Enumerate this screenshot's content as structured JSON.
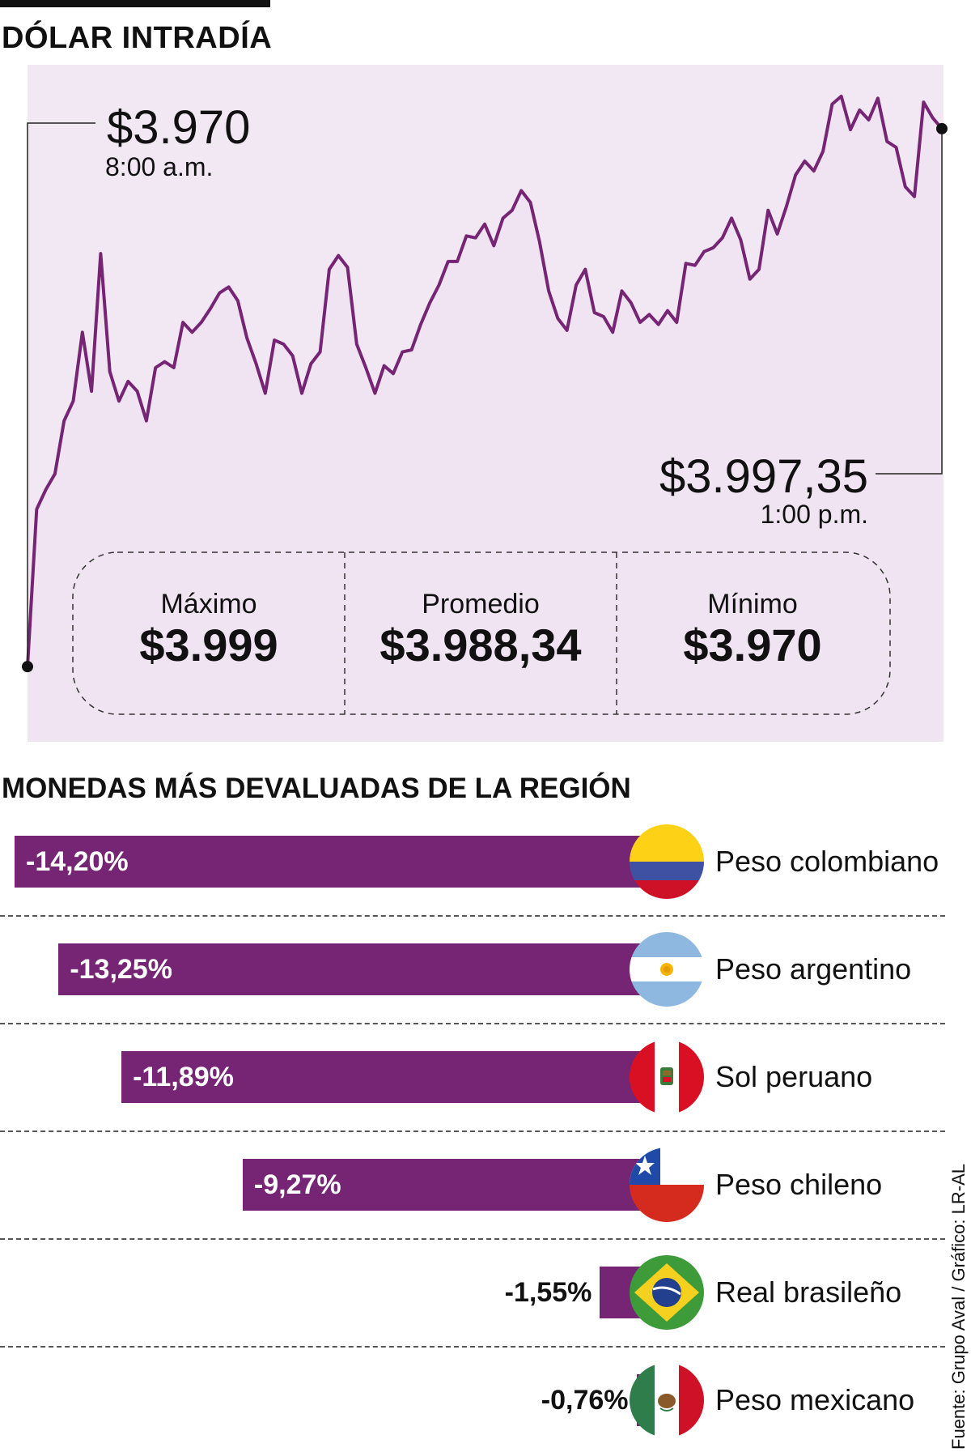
{
  "header": {
    "title": "DÓLAR INTRADÍA"
  },
  "chart_data": [
    {
      "type": "line",
      "title": "DÓLAR INTRADÍA",
      "series": [
        {
          "name": "Dólar intradía (COP)",
          "x": [
            0,
            1,
            2,
            3,
            4,
            5,
            6,
            7,
            8,
            9,
            10,
            11,
            12,
            13,
            14,
            15,
            16,
            17,
            18,
            19,
            20,
            21,
            22,
            23,
            24,
            25,
            26,
            27,
            28,
            29,
            30,
            31,
            32,
            33,
            34,
            35,
            36,
            37,
            38,
            39,
            40,
            41,
            42,
            43,
            44,
            45,
            46,
            47,
            48,
            49,
            50,
            51,
            52,
            53,
            54,
            55,
            56,
            57,
            58,
            59,
            60,
            61,
            62,
            63,
            64,
            65,
            66,
            67,
            68,
            69,
            70,
            71,
            72,
            73,
            74,
            75,
            76,
            77,
            78,
            79,
            80,
            81,
            82,
            83,
            84,
            85,
            86,
            87,
            88,
            89,
            90,
            91,
            92,
            93,
            94,
            95,
            96,
            97,
            98,
            99,
            100
          ],
          "values": [
            3970,
            3978,
            3979,
            3979.8,
            3982.5,
            3983.5,
            3987,
            3984,
            3991,
            3985,
            3983.5,
            3984.5,
            3984,
            3982.5,
            3985.2,
            3985.5,
            3985.2,
            3987.5,
            3987,
            3987.5,
            3988.2,
            3989,
            3989.3,
            3988.6,
            3986.7,
            3985.4,
            3983.9,
            3986.6,
            3986.4,
            3985.8,
            3983.9,
            3985.4,
            3986,
            3990.2,
            3990.9,
            3990.3,
            3986.4,
            3985.2,
            3983.9,
            3985.3,
            3984.9,
            3986,
            3986.1,
            3987.4,
            3988.5,
            3989.4,
            3990.6,
            3990.6,
            3991.9,
            3991.8,
            3992.5,
            3991.4,
            3992.8,
            3993.2,
            3994.2,
            3993.6,
            3991.6,
            3989.1,
            3987.7,
            3987.1,
            3989.4,
            3990.2,
            3988,
            3987.8,
            3987,
            3989.1,
            3988.5,
            3987.5,
            3987.9,
            3987.4,
            3988.1,
            3987.5,
            3990.5,
            3990.4,
            3991.1,
            3991.3,
            3991.8,
            3992.8,
            3991.7,
            3989.7,
            3990.2,
            3993.2,
            3992,
            3993.4,
            3995,
            3995.7,
            3995.2,
            3996.2,
            3998.6,
            3999,
            3997.3,
            3998.3,
            3997.8,
            3998.9,
            3996.7,
            3996.4,
            3994.4,
            3993.9,
            3998.7,
            3997.9,
            3997.35
          ]
        }
      ],
      "xlabel": "",
      "ylabel": "",
      "xlim": [
        0,
        100
      ],
      "ylim": [
        3965.6,
        4000.6
      ],
      "annotations": {
        "start": {
          "value": "$3.970",
          "time": "8:00 a.m."
        },
        "end": {
          "value": "$3.997,35",
          "time": "1:00 p.m."
        }
      },
      "stats": [
        {
          "label": "Máximo",
          "value": "$3.999",
          "number": 3999
        },
        {
          "label": "Promedio",
          "value": "$3.988,34",
          "number": 3988.34
        },
        {
          "label": "Mínimo",
          "value": "$3.970",
          "number": 3970
        }
      ]
    },
    {
      "type": "bar",
      "title": "MONEDAS MÁS DEVALUADAS DE LA REGIÓN",
      "orientation": "horizontal",
      "categories": [
        "Peso colombiano",
        "Peso argentino",
        "Sol peruano",
        "Peso chileno",
        "Real brasileño",
        "Peso mexicano"
      ],
      "values": [
        -14.2,
        -13.25,
        -11.89,
        -9.27,
        -1.55,
        -0.76
      ],
      "labels": [
        "-14,20%",
        "-13,25%",
        "-11,89%",
        "-9,27%",
        "-1,55%",
        "-0,76%"
      ],
      "flags": [
        "colombia-flag-icon",
        "argentina-flag-icon",
        "peru-flag-icon",
        "chile-flag-icon",
        "brazil-flag-icon",
        "mexico-flag-icon"
      ]
    }
  ],
  "colors": {
    "accent": "#762575",
    "fill": "#f2e8f4",
    "text": "#111111"
  },
  "source": "Fuente: Grupo Aval / Gráfico: LR-AL"
}
